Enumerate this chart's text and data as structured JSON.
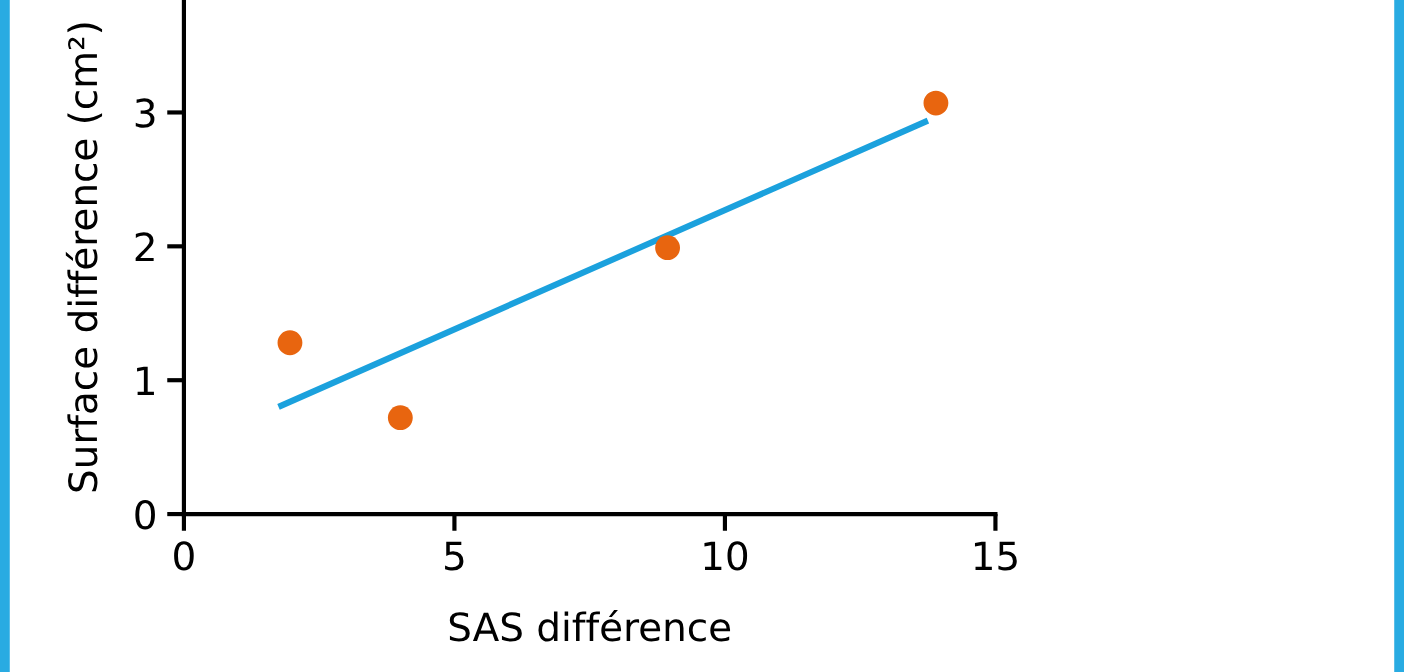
{
  "chart_data": {
    "type": "scatter",
    "xlabel": "SAS différence",
    "ylabel": "Surface différence (cm²)",
    "xlim": [
      0,
      15
    ],
    "ylim": [
      0,
      3.84
    ],
    "xticks": [
      0,
      5,
      10,
      15
    ],
    "yticks": [
      0,
      1,
      2,
      3
    ],
    "grid": false,
    "legend": false,
    "series": [
      {
        "color": "#e8650f",
        "x": [
          1.96,
          4.0,
          8.94,
          13.9
        ],
        "values": [
          1.28,
          0.72,
          1.99,
          3.07
        ],
        "marker": "circle"
      },
      {
        "type": "line",
        "color": "#1ba1dd",
        "x": [
          1.8,
          13.7
        ],
        "values": [
          0.81,
          2.93
        ],
        "line_style": "solid"
      }
    ]
  }
}
